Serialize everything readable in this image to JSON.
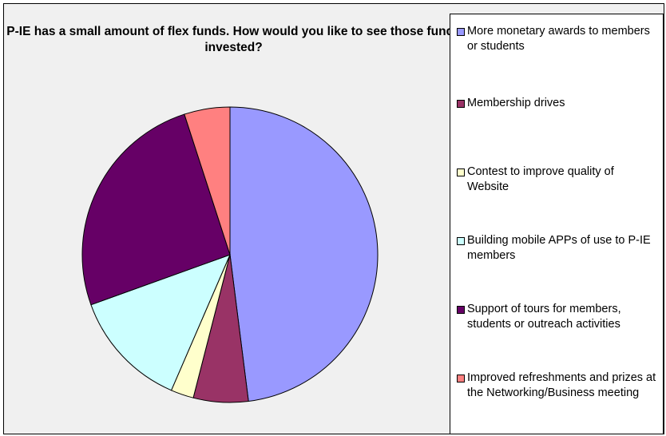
{
  "chart_data": {
    "type": "pie",
    "title": "P-IE has a small amount of flex funds. How would you like to see those funds invested?",
    "categories": [
      "More monetary awards to members or students",
      "Membership drives",
      "Contest to improve quality of Website",
      "Building mobile APPs of use to P-IE members",
      "Support of tours for members, students or outreach activities",
      "Improved refreshments and prizes at the Networking/Business meeting"
    ],
    "values": [
      48,
      6,
      2.5,
      13,
      25.5,
      5
    ],
    "colors": [
      "#9999ff",
      "#993366",
      "#ffffcc",
      "#ccffff",
      "#660066",
      "#ff8080"
    ],
    "legend_position": "right",
    "start_angle": "12 o'clock",
    "direction": "clockwise",
    "background": "#f0f0f0"
  }
}
